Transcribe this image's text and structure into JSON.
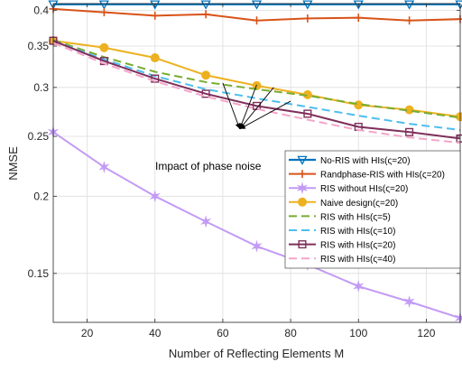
{
  "chart_data": {
    "type": "line",
    "xlabel": "Number of Reflecting Elements M",
    "ylabel": "NMSE",
    "xlim": [
      10,
      130
    ],
    "ylim": [
      0.125,
      0.41
    ],
    "y_scale": "log",
    "grid": true,
    "legend_placement": "center-right",
    "x_ticks": [
      20,
      40,
      60,
      80,
      100,
      120
    ],
    "y_ticks": [
      0.15,
      0.2,
      0.25,
      0.3,
      0.35,
      0.4
    ],
    "y_tick_labels": [
      "0.15",
      "0.2",
      "0.25",
      "0.3",
      "0.35",
      "0.4"
    ],
    "annotation": "Impact of phase noise",
    "annotation_targets": [
      [
        60,
        0.305
      ],
      [
        70,
        0.303
      ],
      [
        75,
        0.3
      ],
      [
        80,
        0.285
      ]
    ],
    "annotation_anchor": [
      65,
      0.257
    ],
    "series": [
      {
        "name": "No-RIS with HIs(ς=20)",
        "color": "#0072bd",
        "marker": "triangle-down",
        "dash": "solid",
        "width": 2.2,
        "x": [
          10,
          25,
          40,
          55,
          70,
          85,
          100,
          115,
          130
        ],
        "y": [
          0.409,
          0.409,
          0.409,
          0.409,
          0.409,
          0.409,
          0.409,
          0.409,
          0.409
        ]
      },
      {
        "name": "Randphase-RIS with HIs(ς=20)",
        "color": "#d95319",
        "marker": "plus",
        "dash": "solid",
        "width": 2,
        "x": [
          10,
          25,
          40,
          55,
          70,
          85,
          100,
          115,
          130
        ],
        "y": [
          0.402,
          0.397,
          0.392,
          0.394,
          0.385,
          0.388,
          0.389,
          0.385,
          0.387
        ]
      },
      {
        "name": "RIS without HIs(ς=20)",
        "color": "#c39bf5",
        "marker": "star",
        "dash": "solid",
        "width": 2,
        "x": [
          10,
          25,
          40,
          55,
          70,
          85,
          100,
          115,
          130
        ],
        "y": [
          0.254,
          0.223,
          0.2,
          0.182,
          0.166,
          0.155,
          0.143,
          0.135,
          0.127
        ]
      },
      {
        "name": "Naive design(ς=20)",
        "color": "#edb120",
        "marker": "circle",
        "dash": "solid",
        "width": 2,
        "x": [
          10,
          25,
          40,
          55,
          70,
          85,
          100,
          115,
          130
        ],
        "y": [
          0.357,
          0.348,
          0.335,
          0.314,
          0.302,
          0.292,
          0.281,
          0.276,
          0.269
        ]
      },
      {
        "name": "RIS with HIs(ς=5)",
        "color": "#77ac30",
        "marker": "none",
        "dash": "dashed",
        "width": 2,
        "x": [
          10,
          25,
          40,
          55,
          70,
          85,
          100,
          115,
          130
        ],
        "y": [
          0.358,
          0.336,
          0.318,
          0.306,
          0.298,
          0.291,
          0.282,
          0.275,
          0.268
        ]
      },
      {
        "name": "RIS with HIs(ς=10)",
        "color": "#4dbeee",
        "marker": "none",
        "dash": "dashed",
        "width": 2,
        "x": [
          10,
          25,
          40,
          55,
          70,
          85,
          100,
          115,
          130
        ],
        "y": [
          0.357,
          0.333,
          0.313,
          0.298,
          0.288,
          0.279,
          0.27,
          0.262,
          0.256
        ]
      },
      {
        "name": "RIS with HIs(ς=20)",
        "color": "#7e2f5a",
        "marker": "square",
        "dash": "solid",
        "width": 2,
        "x": [
          10,
          25,
          40,
          55,
          70,
          85,
          100,
          115,
          130
        ],
        "y": [
          0.357,
          0.331,
          0.31,
          0.293,
          0.28,
          0.272,
          0.259,
          0.254,
          0.248
        ]
      },
      {
        "name": "RIS with HIs(ς=40)",
        "color": "#f4a4c9",
        "marker": "none",
        "dash": "dashed",
        "width": 2,
        "x": [
          10,
          25,
          40,
          55,
          70,
          85,
          100,
          115,
          130
        ],
        "y": [
          0.354,
          0.328,
          0.307,
          0.29,
          0.277,
          0.266,
          0.256,
          0.249,
          0.244
        ]
      }
    ]
  }
}
